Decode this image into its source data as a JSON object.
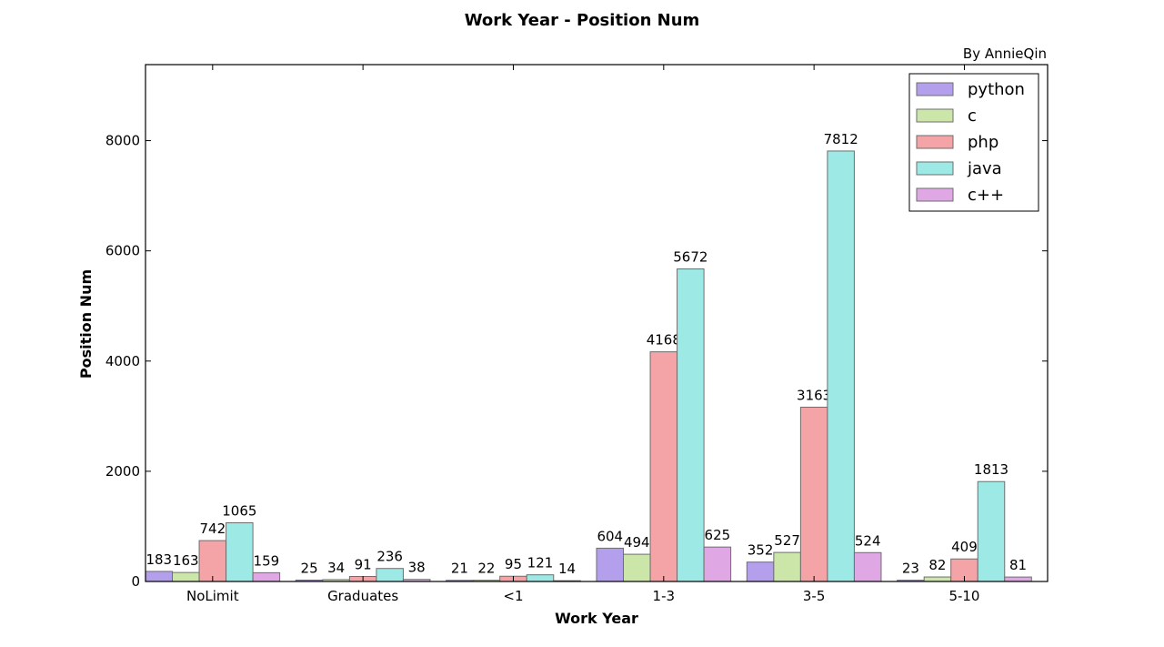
{
  "chart_data": {
    "type": "bar",
    "title": "Work Year - Position Num",
    "subtitle": "By AnnieQin",
    "xlabel": "Work Year",
    "ylabel": "Position Num",
    "categories": [
      "NoLimit",
      "Graduates",
      "<1",
      "1-3",
      "3-5",
      "5-10"
    ],
    "ylim": [
      0,
      9380
    ],
    "yticks": [
      0,
      2000,
      4000,
      6000,
      8000
    ],
    "grid": false,
    "legend_position": "top-right",
    "series": [
      {
        "name": "python",
        "color": "#b49fed",
        "values": [
          183,
          25,
          21,
          604,
          352,
          23
        ]
      },
      {
        "name": "c",
        "color": "#cce6a9",
        "values": [
          163,
          34,
          22,
          494,
          527,
          82
        ]
      },
      {
        "name": "php",
        "color": "#f4a3a6",
        "values": [
          742,
          91,
          95,
          4168,
          3163,
          409
        ]
      },
      {
        "name": "java",
        "color": "#9de9e6",
        "values": [
          1065,
          236,
          121,
          5672,
          7812,
          1813
        ]
      },
      {
        "name": "c++",
        "color": "#dfa8e5",
        "values": [
          159,
          38,
          14,
          625,
          524,
          81
        ]
      }
    ]
  }
}
